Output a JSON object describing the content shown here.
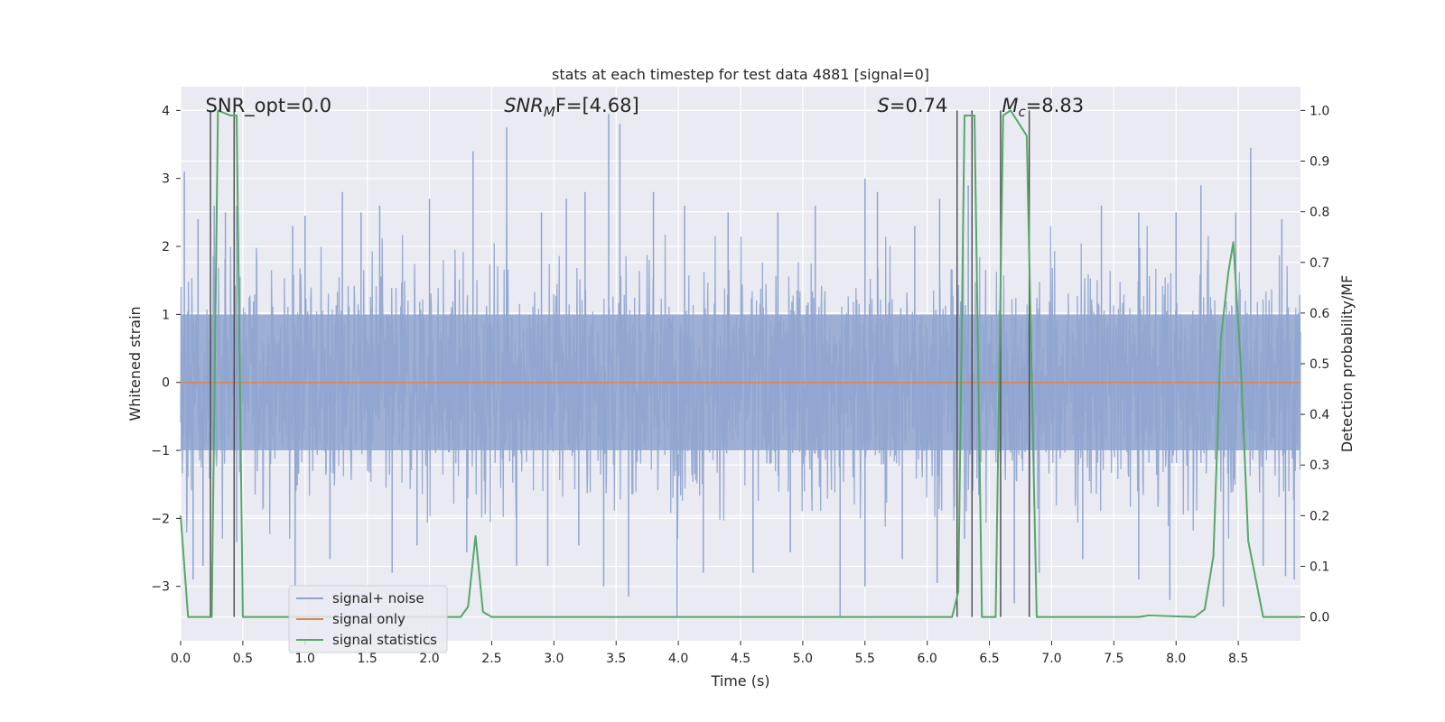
{
  "chart_data": {
    "type": "line",
    "title": "stats at each timestep for test data 4881 [signal=0]",
    "xlabel": "Time (s)",
    "ylabel_left": "Whitened strain",
    "ylabel_right": "Detection probability/MF",
    "xlim": [
      0.0,
      9.0
    ],
    "ylim_left": [
      -3.8,
      4.35
    ],
    "ylim_right": [
      -0.047,
      1.047
    ],
    "x_ticks": [
      0.0,
      0.5,
      1.0,
      1.5,
      2.0,
      2.5,
      3.0,
      3.5,
      4.0,
      4.5,
      5.0,
      5.5,
      6.0,
      6.5,
      7.0,
      7.5,
      8.0,
      8.5
    ],
    "x_tick_labels": [
      "0.0",
      "0.5",
      "1.0",
      "1.5",
      "2.0",
      "2.5",
      "3.0",
      "3.5",
      "4.0",
      "4.5",
      "5.0",
      "5.5",
      "6.0",
      "6.5",
      "7.0",
      "7.5",
      "8.0",
      "8.5"
    ],
    "y_ticks_left": [
      -3,
      -2,
      -1,
      0,
      1,
      2,
      3,
      4
    ],
    "y_tick_labels_left": [
      "−3",
      "−2",
      "−1",
      "0",
      "1",
      "2",
      "3",
      "4"
    ],
    "y_ticks_right": [
      0.0,
      0.1,
      0.2,
      0.3,
      0.4,
      0.5,
      0.6,
      0.7,
      0.8,
      0.9,
      1.0
    ],
    "y_tick_labels_right": [
      "0.0",
      "0.1",
      "0.2",
      "0.3",
      "0.4",
      "0.5",
      "0.6",
      "0.7",
      "0.8",
      "0.9",
      "1.0"
    ],
    "grid": true,
    "legend_position": "lower-left",
    "colors": {
      "background": "#eaeaf2",
      "grid": "#ffffff",
      "noise": "#8fa5cf",
      "signal": "#dd8452",
      "statistics": "#55a868",
      "markers": "#4a4a4a"
    },
    "series": [
      {
        "name": "signal+ noise",
        "axis": "left",
        "style": "dense-noise",
        "band_sigma": 0.85,
        "spikes_up": [
          [
            0.03,
            3.1
          ],
          [
            0.14,
            2.4
          ],
          [
            0.27,
            2.6
          ],
          [
            0.36,
            2.5
          ],
          [
            0.45,
            2.6
          ],
          [
            0.9,
            2.3
          ],
          [
            1.0,
            2.45
          ],
          [
            1.3,
            2.8
          ],
          [
            1.45,
            2.5
          ],
          [
            1.6,
            2.6
          ],
          [
            2.0,
            2.7
          ],
          [
            2.35,
            3.4
          ],
          [
            2.62,
            3.75
          ],
          [
            2.9,
            2.5
          ],
          [
            3.1,
            2.7
          ],
          [
            3.25,
            2.8
          ],
          [
            3.44,
            3.95
          ],
          [
            3.53,
            3.8
          ],
          [
            3.8,
            2.8
          ],
          [
            4.05,
            2.6
          ],
          [
            4.4,
            2.5
          ],
          [
            4.8,
            2.5
          ],
          [
            5.1,
            2.6
          ],
          [
            5.5,
            3.0
          ],
          [
            5.6,
            2.8
          ],
          [
            5.9,
            2.3
          ],
          [
            6.1,
            2.7
          ],
          [
            6.33,
            2.9
          ],
          [
            7.4,
            2.6
          ],
          [
            7.7,
            2.5
          ],
          [
            8.0,
            2.5
          ],
          [
            8.2,
            2.9
          ],
          [
            8.48,
            2.5
          ],
          [
            8.6,
            3.45
          ],
          [
            8.85,
            2.4
          ]
        ],
        "spikes_down": [
          [
            0.1,
            -2.9
          ],
          [
            0.18,
            -2.7
          ],
          [
            0.45,
            -2.35
          ],
          [
            0.92,
            -3.0
          ],
          [
            1.2,
            -2.6
          ],
          [
            1.7,
            -2.8
          ],
          [
            1.9,
            -2.4
          ],
          [
            2.3,
            -2.5
          ],
          [
            2.7,
            -2.7
          ],
          [
            2.95,
            -2.7
          ],
          [
            3.2,
            -2.4
          ],
          [
            3.4,
            -3.0
          ],
          [
            3.6,
            -3.15
          ],
          [
            3.99,
            -3.45
          ],
          [
            4.2,
            -2.8
          ],
          [
            4.6,
            -2.8
          ],
          [
            4.9,
            -2.5
          ],
          [
            5.3,
            -3.45
          ],
          [
            5.5,
            -3.0
          ],
          [
            5.8,
            -2.6
          ],
          [
            6.08,
            -2.95
          ],
          [
            6.3,
            -2.3
          ],
          [
            6.7,
            -3.25
          ],
          [
            6.9,
            -2.8
          ],
          [
            7.25,
            -2.6
          ],
          [
            7.7,
            -2.9
          ],
          [
            7.95,
            -3.2
          ],
          [
            8.38,
            -3.3
          ],
          [
            8.7,
            -2.7
          ],
          [
            8.88,
            -2.85
          ],
          [
            8.95,
            -2.9
          ]
        ]
      },
      {
        "name": "signal only",
        "axis": "left",
        "x": [
          0.0,
          9.0
        ],
        "y": [
          0.0,
          0.0
        ]
      },
      {
        "name": "signal statistics",
        "axis": "right",
        "x": [
          0.0,
          0.06,
          0.25,
          0.3,
          0.4,
          0.45,
          0.5,
          2.25,
          2.31,
          2.37,
          2.43,
          2.5,
          6.2,
          6.25,
          6.3,
          6.38,
          6.44,
          6.55,
          6.61,
          6.67,
          6.8,
          6.88,
          6.95,
          7.7,
          7.78,
          8.15,
          8.23,
          8.3,
          8.36,
          8.42,
          8.46,
          8.52,
          8.58,
          8.7,
          9.0
        ],
        "y": [
          0.2,
          0.0,
          0.0,
          1.0,
          0.99,
          0.99,
          0.0,
          0.0,
          0.02,
          0.16,
          0.01,
          0.0,
          0.0,
          0.05,
          0.99,
          0.99,
          0.0,
          0.0,
          0.99,
          1.0,
          0.95,
          0.0,
          0.0,
          0.0,
          0.003,
          0.0,
          0.015,
          0.12,
          0.55,
          0.68,
          0.74,
          0.5,
          0.15,
          0.0,
          0.0
        ]
      }
    ],
    "vertical_markers": [
      0.24,
      0.43,
      6.24,
      6.36,
      6.59,
      6.82
    ],
    "annotations": [
      {
        "key": "snr_opt",
        "text": "SNR_opt=0.0",
        "x": 0.2
      },
      {
        "key": "snr_mf",
        "main": "SNR",
        "sub": "M",
        "tail": "F=[4.68]",
        "x": 2.6
      },
      {
        "key": "s",
        "main": "S",
        "tail": "=0.74",
        "x": 5.6
      },
      {
        "key": "mc",
        "main": "M",
        "sub": "c",
        "tail": "=8.83",
        "x": 6.6
      }
    ]
  }
}
